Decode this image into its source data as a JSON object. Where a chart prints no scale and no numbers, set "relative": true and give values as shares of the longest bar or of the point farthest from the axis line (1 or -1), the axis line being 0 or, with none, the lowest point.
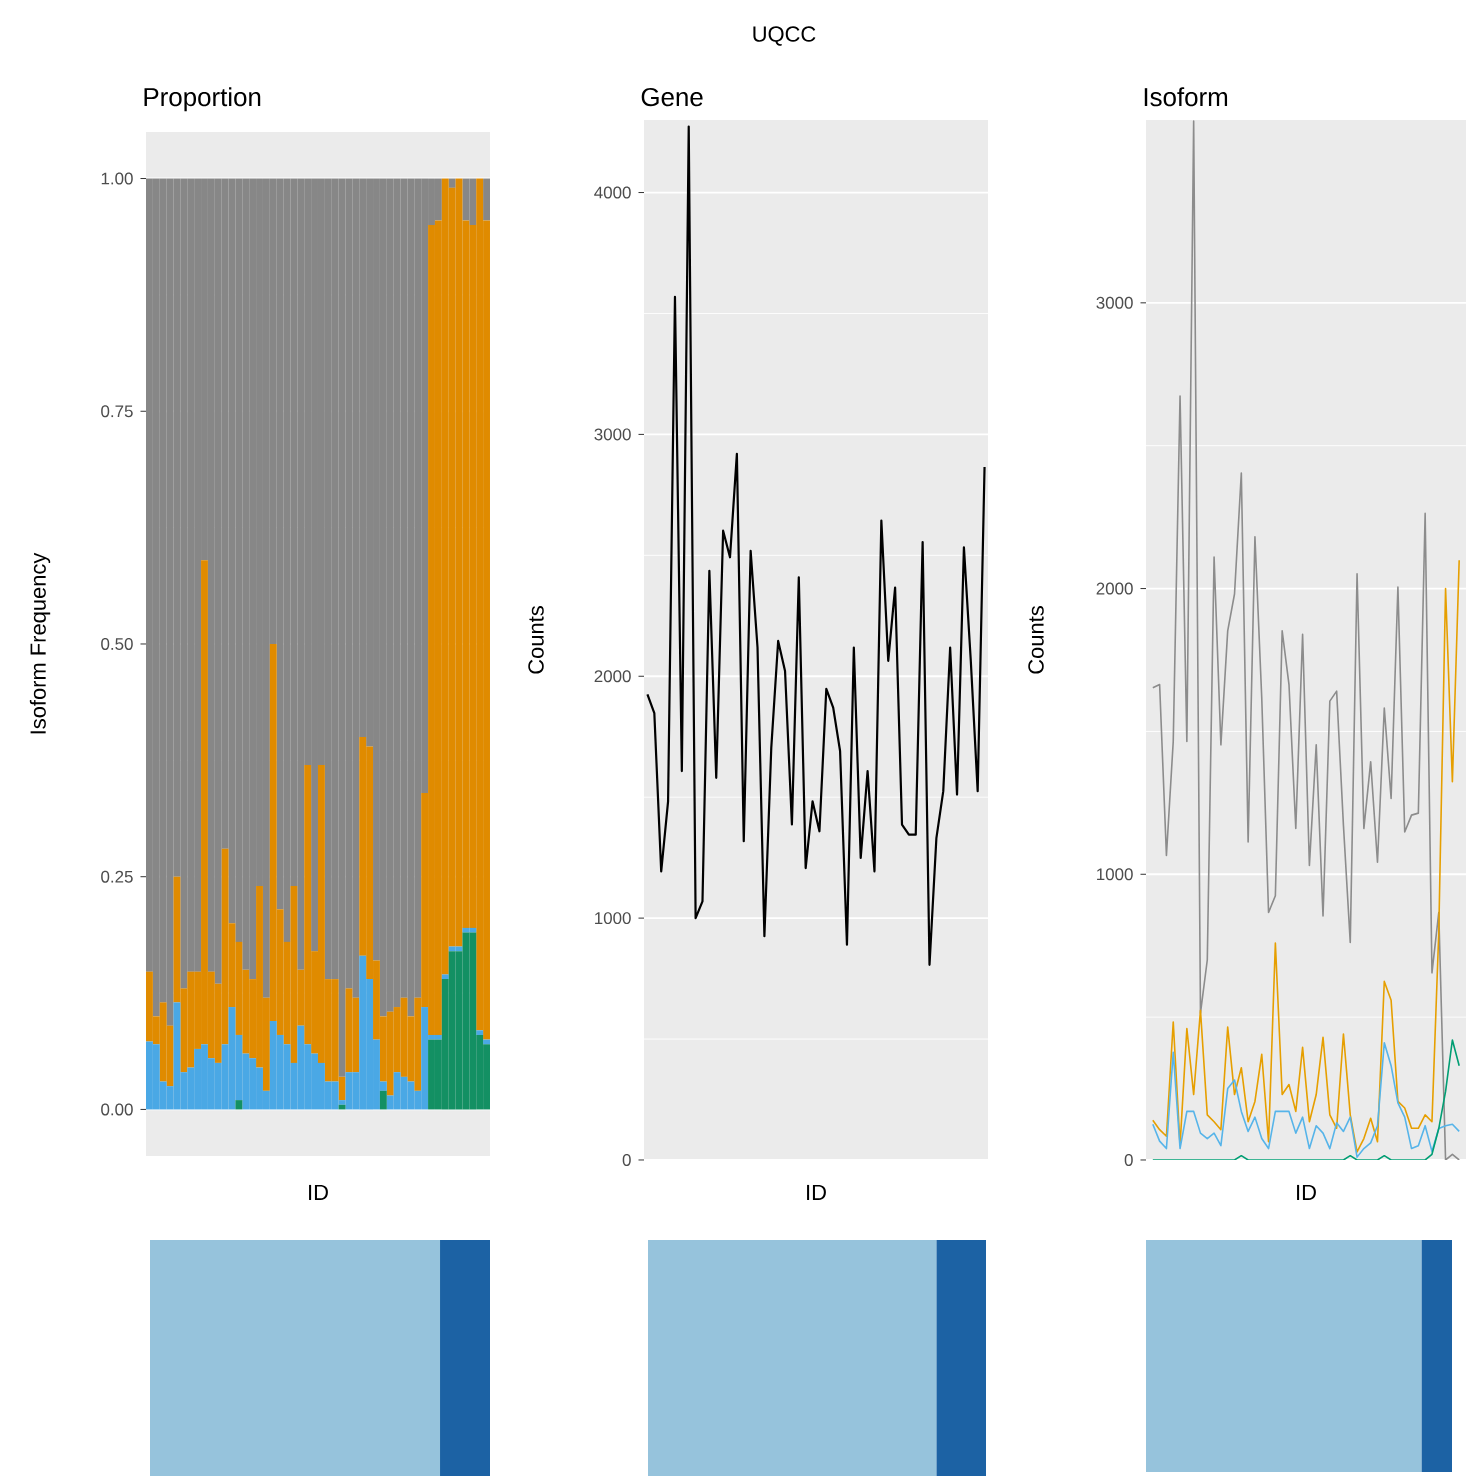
{
  "chart_data": [
    {
      "type": "bar",
      "title": "Proportion",
      "xlabel": "ID",
      "ylabel": "Isoform Frequency",
      "stacked": true,
      "grid": "y",
      "ylim": [
        -0.05,
        1.05
      ],
      "yticks": [
        {
          "value": 0,
          "label": "0.00"
        },
        {
          "value": 0.25,
          "label": "0.25"
        },
        {
          "value": 0.5,
          "label": "0.50"
        },
        {
          "value": 0.75,
          "label": "0.75"
        },
        {
          "value": 1,
          "label": "1.00"
        }
      ],
      "categories": [
        null,
        null,
        null,
        null,
        null,
        null,
        null,
        null,
        null,
        null,
        null,
        null,
        null,
        null,
        null,
        null,
        null,
        null,
        null,
        null,
        null,
        null,
        null,
        null,
        null,
        null,
        null,
        null,
        null,
        null,
        null,
        null,
        null,
        null,
        null,
        null,
        null,
        null,
        null,
        null,
        null,
        null,
        null,
        null,
        null,
        null,
        null,
        null,
        null,
        null
      ],
      "series": [
        {
          "color": "#139063",
          "values": [
            0,
            0,
            0,
            0,
            0,
            0,
            0,
            0,
            0,
            0,
            0,
            0,
            0,
            0.01,
            0,
            0,
            0,
            0,
            0,
            0,
            0,
            0,
            0,
            0,
            0,
            0,
            0,
            0,
            0.005,
            0,
            0,
            0,
            0,
            0,
            0.02,
            0,
            0,
            0,
            0,
            0,
            0,
            0.075,
            0.075,
            0.14,
            0.17,
            0.17,
            0.19,
            0.19,
            0.08,
            0.07
          ]
        },
        {
          "color": "#4aa8e5",
          "values": [
            0.073,
            0.07,
            0.03,
            0.025,
            0.115,
            0.04,
            0.045,
            0.065,
            0.07,
            0.055,
            0.05,
            0.07,
            0.11,
            0.07,
            0.06,
            0.055,
            0.045,
            0.02,
            0.095,
            0.08,
            0.07,
            0.05,
            0.09,
            0.07,
            0.06,
            0.05,
            0.03,
            0.03,
            0.005,
            0.04,
            0.04,
            0.165,
            0.14,
            0.075,
            0.01,
            0.015,
            0.04,
            0.035,
            0.03,
            0.02,
            0.11,
            0.005,
            0.005,
            0.005,
            0.005,
            0.005,
            0.005,
            0.005,
            0.005,
            0.005
          ]
        },
        {
          "color": "#e08b00",
          "values": [
            0.075,
            0.03,
            0.085,
            0.065,
            0.135,
            0.09,
            0.103,
            0.083,
            0.52,
            0.093,
            0.085,
            0.21,
            0.09,
            0.1,
            0.09,
            0.085,
            0.195,
            0.1,
            0.405,
            0.135,
            0.11,
            0.19,
            0.06,
            0.3,
            0.11,
            0.32,
            0.11,
            0.11,
            0.025,
            0.09,
            0.08,
            0.235,
            0.25,
            0.085,
            0.07,
            0.09,
            0.07,
            0.085,
            0.07,
            0.1,
            0.23,
            0.87,
            0.875,
            0.855,
            0.815,
            0.825,
            0.76,
            0.755,
            0.915,
            0.88
          ]
        },
        {
          "color": "#878787",
          "values": [
            0.852,
            0.9,
            0.885,
            0.91,
            0.75,
            0.87,
            0.852,
            0.852,
            0.41,
            0.852,
            0.865,
            0.72,
            0.8,
            0.82,
            0.85,
            0.86,
            0.76,
            0.88,
            0.5,
            0.785,
            0.82,
            0.76,
            0.85,
            0.63,
            0.83,
            0.63,
            0.86,
            0.86,
            0.965,
            0.87,
            0.88,
            0.6,
            0.61,
            0.84,
            0.9,
            0.895,
            0.89,
            0.88,
            0.9,
            0.88,
            0.66,
            0.05,
            0.045,
            0,
            0.01,
            0,
            0.045,
            0.05,
            0,
            0.045
          ]
        }
      ]
    },
    {
      "type": "line",
      "title": "Gene",
      "annotations": [
        "UQCC"
      ],
      "xlabel": "ID",
      "ylabel": "Counts",
      "grid": "y",
      "ylim": [
        0,
        4300
      ],
      "yticks": [
        0,
        1000,
        2000,
        3000,
        4000
      ],
      "categories": [
        null,
        null,
        null,
        null,
        null,
        null,
        null,
        null,
        null,
        null,
        null,
        null,
        null,
        null,
        null,
        null,
        null,
        null,
        null,
        null,
        null,
        null,
        null,
        null,
        null,
        null,
        null,
        null,
        null,
        null,
        null,
        null,
        null,
        null,
        null,
        null,
        null,
        null,
        null,
        null,
        null,
        null,
        null,
        null,
        null,
        null,
        null,
        null,
        null,
        null
      ],
      "series": [
        {
          "color": "#000000",
          "values": [
            1925,
            1848,
            1193,
            1483,
            3569,
            1608,
            4273,
            1000,
            1069,
            2436,
            1580,
            2602,
            2492,
            2920,
            1318,
            2519,
            2119,
            925,
            1704,
            2146,
            2022,
            1387,
            2409,
            1207,
            1483,
            1359,
            1948,
            1870,
            1691,
            890,
            2119,
            1249,
            1608,
            1193,
            2644,
            2064,
            2367,
            1387,
            1345,
            1345,
            2555,
            807,
            1331,
            1525,
            2119,
            1511,
            2533,
            2064,
            1525,
            2865
          ]
        }
      ]
    },
    {
      "type": "line",
      "title": "Isoform",
      "xlabel": "ID",
      "ylabel": "Counts",
      "grid": "y",
      "ylim": [
        0,
        3640
      ],
      "yticks": [
        0,
        1000,
        2000,
        3000
      ],
      "categories": [
        null,
        null,
        null,
        null,
        null,
        null,
        null,
        null,
        null,
        null,
        null,
        null,
        null,
        null,
        null,
        null,
        null,
        null,
        null,
        null,
        null,
        null,
        null,
        null,
        null,
        null,
        null,
        null,
        null,
        null,
        null,
        null,
        null,
        null,
        null,
        null,
        null,
        null,
        null,
        null,
        null,
        null,
        null,
        null,
        null,
        null
      ],
      "series": [
        {
          "color": "#8c8c8c",
          "values": [
            1653,
            1664,
            1066,
            1465,
            2674,
            1465,
            3636,
            514,
            700,
            2110,
            1453,
            1852,
            1981,
            2404,
            1113,
            2181,
            1617,
            866,
            925,
            1852,
            1664,
            1160,
            1840,
            1031,
            1453,
            854,
            1606,
            1641,
            1171,
            761,
            2052,
            1160,
            1394,
            1042,
            1582,
            1265,
            2005,
            1148,
            1207,
            1214,
            2263,
            655,
            866,
            0,
            20,
            0
          ]
        },
        {
          "color": "#e69f00",
          "values": [
            139,
            106,
            83,
            483,
            52,
            460,
            229,
            524,
            158,
            134,
            106,
            465,
            229,
            323,
            134,
            205,
            370,
            64,
            759,
            229,
            264,
            170,
            394,
            134,
            229,
            429,
            158,
            111,
            441,
            158,
            28,
            75,
            146,
            64,
            625,
            559,
            205,
            182,
            111,
            111,
            158,
            134,
            795,
            2000,
            1324,
            2099
          ]
        },
        {
          "color": "#56b4e9",
          "values": [
            125,
            66,
            40,
            377,
            40,
            170,
            170,
            94,
            75,
            94,
            50,
            250,
            280,
            170,
            100,
            150,
            75,
            40,
            170,
            170,
            170,
            94,
            150,
            40,
            120,
            94,
            40,
            130,
            100,
            150,
            10,
            40,
            60,
            120,
            410,
            330,
            200,
            150,
            40,
            50,
            120,
            30,
            110,
            120,
            125,
            100
          ]
        },
        {
          "color": "#009e73",
          "values": [
            0,
            0,
            0,
            0,
            0,
            0,
            0,
            0,
            0,
            0,
            0,
            0,
            0,
            15,
            0,
            0,
            0,
            0,
            0,
            0,
            0,
            0,
            0,
            0,
            0,
            0,
            0,
            0,
            0,
            15,
            0,
            0,
            0,
            0,
            15,
            0,
            0,
            0,
            0,
            0,
            0,
            20,
            110,
            240,
            420,
            330
          ]
        }
      ]
    },
    {
      "type": "bar",
      "orientation": "horizontal",
      "stacked": true,
      "relative": true,
      "categories": [
        null
      ],
      "series": [
        {
          "color": "#96c3dc",
          "values": [
            0.853
          ]
        },
        {
          "color": "#1c62a4",
          "values": [
            0.147
          ]
        }
      ]
    },
    {
      "type": "bar",
      "orientation": "horizontal",
      "stacked": true,
      "relative": true,
      "categories": [
        null
      ],
      "series": [
        {
          "color": "#96c3dc",
          "values": [
            0.853
          ]
        },
        {
          "color": "#1c62a4",
          "values": [
            0.147
          ]
        }
      ]
    },
    {
      "type": "bar",
      "orientation": "horizontal",
      "stacked": true,
      "relative": true,
      "categories": [
        null
      ],
      "series": [
        {
          "color": "#96c3dc",
          "values": [
            0.9
          ]
        },
        {
          "color": "#1c62a4",
          "values": [
            0.1
          ]
        }
      ]
    }
  ]
}
